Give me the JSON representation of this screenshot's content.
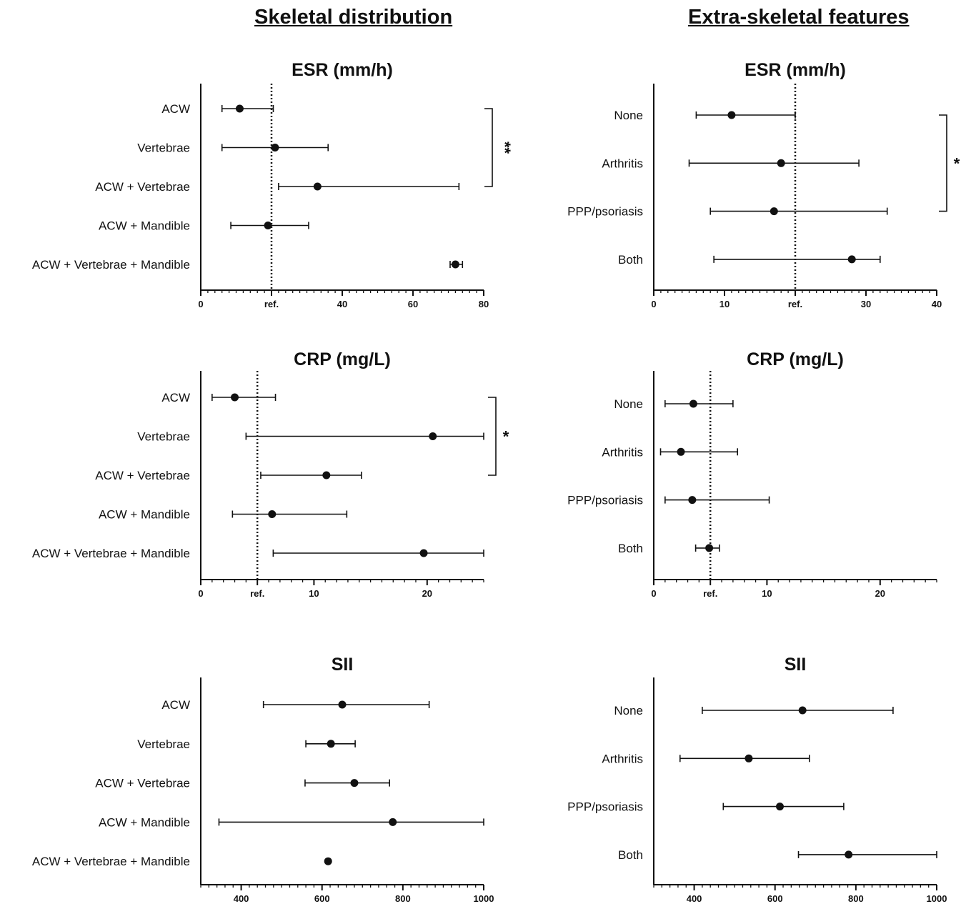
{
  "columns": [
    {
      "title": "Skeletal distribution"
    },
    {
      "title": "Extra-skeletal features"
    }
  ],
  "chart_data": [
    {
      "type": "scatter",
      "title": "ESR (mm/h)",
      "categories": [
        "ACW",
        "Vertebrae",
        "ACW + Vertebrae",
        "ACW + Mandible",
        "ACW + Vertebrae + Mandible"
      ],
      "points": [
        {
          "median": 11,
          "low": 6,
          "high": 20.5
        },
        {
          "median": 21,
          "low": 6,
          "high": 36
        },
        {
          "median": 33,
          "low": 22,
          "high": 73
        },
        {
          "median": 19,
          "low": 8.5,
          "high": 30.5
        },
        {
          "median": 72,
          "low": 70.5,
          "high": 74
        }
      ],
      "xlim": [
        0,
        80
      ],
      "ticks": [
        {
          "value": 0,
          "label": "0"
        },
        {
          "value": 20,
          "label": "ref."
        },
        {
          "value": 40,
          "label": "40"
        },
        {
          "value": 60,
          "label": "60"
        },
        {
          "value": 80,
          "label": "80"
        }
      ],
      "minor_step": 2,
      "ref": 20,
      "significance": [
        {
          "from": 0,
          "to": 2,
          "label": "**"
        }
      ]
    },
    {
      "type": "scatter",
      "title": "ESR (mm/h)",
      "categories": [
        "None",
        "Arthritis",
        "PPP/psoriasis",
        "Both"
      ],
      "points": [
        {
          "median": 11,
          "low": 6,
          "high": 20
        },
        {
          "median": 18,
          "low": 5,
          "high": 29
        },
        {
          "median": 17,
          "low": 8,
          "high": 33
        },
        {
          "median": 28,
          "low": 8.5,
          "high": 32
        }
      ],
      "xlim": [
        0,
        40
      ],
      "ticks": [
        {
          "value": 0,
          "label": "0"
        },
        {
          "value": 10,
          "label": "10"
        },
        {
          "value": 20,
          "label": "ref."
        },
        {
          "value": 30,
          "label": "30"
        },
        {
          "value": 40,
          "label": "40"
        }
      ],
      "minor_step": 1,
      "ref": 20,
      "significance": [
        {
          "from": 0,
          "to": 2,
          "label": "*"
        }
      ]
    },
    {
      "type": "scatter",
      "title": "CRP (mg/L)",
      "categories": [
        "ACW",
        "Vertebrae",
        "ACW + Vertebrae",
        "ACW + Mandible",
        "ACW + Vertebrae + Mandible"
      ],
      "points": [
        {
          "median": 3,
          "low": 1,
          "high": 6.6
        },
        {
          "median": 20.5,
          "low": 4,
          "high": 25
        },
        {
          "median": 11.1,
          "low": 5.3,
          "high": 14.2
        },
        {
          "median": 6.3,
          "low": 2.8,
          "high": 12.9
        },
        {
          "median": 19.7,
          "low": 6.4,
          "high": 25
        }
      ],
      "xlim": [
        0,
        25
      ],
      "ticks": [
        {
          "value": 0,
          "label": "0"
        },
        {
          "value": 5,
          "label": "ref."
        },
        {
          "value": 10,
          "label": "10"
        },
        {
          "value": 20,
          "label": "20"
        }
      ],
      "minor_step": 1,
      "ref": 5,
      "significance": [
        {
          "from": 0,
          "to": 2,
          "label": "*"
        }
      ]
    },
    {
      "type": "scatter",
      "title": "CRP (mg/L)",
      "categories": [
        "None",
        "Arthritis",
        "PPP/psoriasis",
        "Both"
      ],
      "points": [
        {
          "median": 3.5,
          "low": 1,
          "high": 7
        },
        {
          "median": 2.4,
          "low": 0.6,
          "high": 7.4
        },
        {
          "median": 3.4,
          "low": 1,
          "high": 10.2
        },
        {
          "median": 4.9,
          "low": 3.7,
          "high": 5.8
        }
      ],
      "xlim": [
        0,
        25
      ],
      "ticks": [
        {
          "value": 0,
          "label": "0"
        },
        {
          "value": 5,
          "label": "ref."
        },
        {
          "value": 10,
          "label": "10"
        },
        {
          "value": 20,
          "label": "20"
        }
      ],
      "minor_step": 1,
      "ref": 5,
      "significance": []
    },
    {
      "type": "scatter",
      "title": "SII",
      "categories": [
        "ACW",
        "Vertebrae",
        "ACW + Vertebrae",
        "ACW + Mandible",
        "ACW + Vertebrae + Mandible"
      ],
      "points": [
        {
          "median": 650,
          "low": 455,
          "high": 865
        },
        {
          "median": 622,
          "low": 560,
          "high": 682
        },
        {
          "median": 680,
          "low": 558,
          "high": 767
        },
        {
          "median": 775,
          "low": 345,
          "high": 1000
        },
        {
          "median": 615
        }
      ],
      "xlim": [
        300,
        1000
      ],
      "ticks": [
        {
          "value": 400,
          "label": "400"
        },
        {
          "value": 600,
          "label": "600"
        },
        {
          "value": 800,
          "label": "800"
        },
        {
          "value": 1000,
          "label": "1000"
        }
      ],
      "minor_step": 20,
      "significance": []
    },
    {
      "type": "scatter",
      "title": "SII",
      "categories": [
        "None",
        "Arthritis",
        "PPP/psoriasis",
        "Both"
      ],
      "points": [
        {
          "median": 668,
          "low": 420,
          "high": 892
        },
        {
          "median": 535,
          "low": 365,
          "high": 685
        },
        {
          "median": 612,
          "low": 472,
          "high": 770
        },
        {
          "median": 782,
          "low": 658,
          "high": 1000
        }
      ],
      "xlim": [
        300,
        1000
      ],
      "ticks": [
        {
          "value": 400,
          "label": "400"
        },
        {
          "value": 600,
          "label": "600"
        },
        {
          "value": 800,
          "label": "800"
        },
        {
          "value": 1000,
          "label": "1000"
        }
      ],
      "minor_step": 20,
      "significance": []
    }
  ]
}
